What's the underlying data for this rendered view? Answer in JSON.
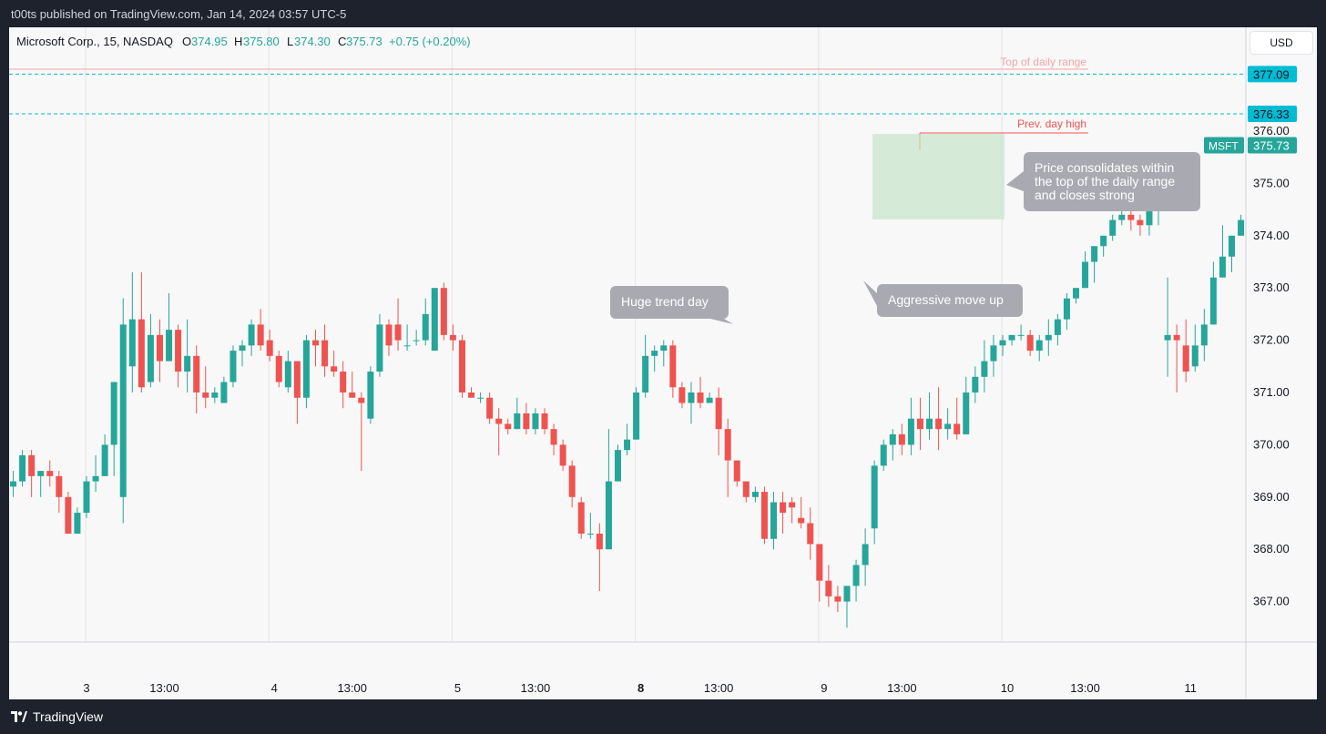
{
  "header": {
    "published": "t00ts published on TradingView.com, Jan 14, 2024 03:57 UTC-5"
  },
  "footer": {
    "brand": "TradingView"
  },
  "currency_button": "USD",
  "legend": {
    "symbol": "Microsoft Corp., 15, NASDAQ",
    "o_label": "O",
    "o_value": "374.95",
    "h_label": "H",
    "h_value": "375.80",
    "l_label": "L",
    "l_value": "374.30",
    "c_label": "C",
    "c_value": "375.73",
    "change": "+0.75 (+0.20%)"
  },
  "colors": {
    "up": "#26a69a",
    "down": "#ef5350",
    "level_line": "#00bcd4",
    "annotation_bg": "#a9aab1",
    "box_fill": "#c8e6c9"
  },
  "chart_data": {
    "type": "candlestick",
    "title": "Microsoft Corp., 15, NASDAQ",
    "interval": "15",
    "ylim": [
      366.2,
      377.55
    ],
    "y_ticks": [
      "376.00",
      "375.00",
      "374.00",
      "373.00",
      "372.00",
      "371.00",
      "370.00",
      "369.00",
      "368.00",
      "367.00"
    ],
    "x_ticks": [
      {
        "label": "3",
        "bar": 0,
        "bold": false
      },
      {
        "label": "13:00",
        "bar": 8.5,
        "bold": false
      },
      {
        "label": "4",
        "bar": 20.5,
        "bold": false
      },
      {
        "label": "13:00",
        "bar": 29,
        "bold": false
      },
      {
        "label": "5",
        "bar": 40.5,
        "bold": false
      },
      {
        "label": "13:00",
        "bar": 49,
        "bold": false
      },
      {
        "label": "8",
        "bar": 60.5,
        "bold": true
      },
      {
        "label": "13:00",
        "bar": 69,
        "bold": false
      },
      {
        "label": "9",
        "bar": 80.5,
        "bold": false
      },
      {
        "label": "13:00",
        "bar": 89,
        "bold": false
      },
      {
        "label": "10",
        "bar": 100.5,
        "bold": false
      },
      {
        "label": "13:00",
        "bar": 109,
        "bold": false
      },
      {
        "label": "11",
        "bar": 120.5,
        "bold": false
      }
    ],
    "day_separators": [
      0,
      20,
      40,
      60,
      80,
      100
    ],
    "candles": [
      [
        -8,
        369.2,
        369.5,
        369.0,
        369.3
      ],
      [
        -7,
        369.3,
        369.9,
        369.2,
        369.8
      ],
      [
        -6,
        369.8,
        369.9,
        369.0,
        369.4
      ],
      [
        -5,
        369.4,
        369.5,
        369.0,
        369.5
      ],
      [
        -4,
        369.5,
        369.7,
        369.2,
        369.4
      ],
      [
        -3,
        369.4,
        369.5,
        368.7,
        369.0
      ],
      [
        -2,
        369.0,
        369.1,
        368.3,
        368.3
      ],
      [
        -1,
        368.3,
        368.8,
        368.3,
        368.7
      ],
      [
        0,
        368.7,
        369.4,
        368.6,
        369.3
      ],
      [
        1,
        369.3,
        369.8,
        369.1,
        369.4
      ],
      [
        2,
        369.4,
        370.2,
        369.4,
        370.0
      ],
      [
        3,
        370.0,
        371.2,
        369.4,
        371.2
      ],
      [
        4,
        369.0,
        372.8,
        368.5,
        372.3
      ],
      [
        5,
        371.5,
        373.3,
        371.0,
        372.4
      ],
      [
        6,
        372.4,
        373.3,
        371.0,
        371.1
      ],
      [
        7,
        371.2,
        372.5,
        371.1,
        372.1
      ],
      [
        8,
        372.1,
        372.4,
        371.2,
        371.6
      ],
      [
        9,
        371.6,
        372.9,
        371.6,
        372.2
      ],
      [
        10,
        372.2,
        372.3,
        371.1,
        371.4
      ],
      [
        11,
        371.4,
        372.4,
        371.0,
        371.7
      ],
      [
        12,
        371.7,
        371.9,
        370.6,
        371.0
      ],
      [
        13,
        371.0,
        371.5,
        370.7,
        370.9
      ],
      [
        14,
        370.9,
        371.1,
        370.8,
        371.0
      ],
      [
        15,
        370.8,
        371.3,
        370.8,
        371.2
      ],
      [
        16,
        371.2,
        371.9,
        371.1,
        371.8
      ],
      [
        17,
        371.8,
        372.0,
        371.5,
        371.9
      ],
      [
        18,
        371.9,
        372.4,
        371.7,
        372.3
      ],
      [
        19,
        372.3,
        372.6,
        371.8,
        371.9
      ],
      [
        20,
        372.0,
        372.2,
        371.6,
        371.7
      ],
      [
        21,
        371.7,
        371.8,
        371.1,
        371.2
      ],
      [
        22,
        371.1,
        371.8,
        371.0,
        371.6
      ],
      [
        23,
        371.6,
        371.6,
        370.4,
        370.9
      ],
      [
        24,
        370.9,
        372.1,
        370.7,
        372.0
      ],
      [
        25,
        372.0,
        372.2,
        371.5,
        371.9
      ],
      [
        26,
        372.0,
        372.3,
        371.3,
        371.5
      ],
      [
        27,
        371.5,
        371.8,
        371.3,
        371.4
      ],
      [
        28,
        371.4,
        371.6,
        370.7,
        371.0
      ],
      [
        29,
        371.0,
        371.4,
        370.9,
        370.9
      ],
      [
        30,
        370.9,
        371.0,
        369.5,
        370.8
      ],
      [
        31,
        370.5,
        371.5,
        370.4,
        371.4
      ],
      [
        32,
        371.4,
        372.5,
        371.3,
        372.3
      ],
      [
        33,
        372.3,
        372.4,
        371.7,
        371.9
      ],
      [
        34,
        372.3,
        372.8,
        371.8,
        372.0
      ],
      [
        35,
        371.9,
        372.3,
        371.8,
        371.9
      ],
      [
        36,
        372.0,
        372.2,
        371.9,
        372.0
      ],
      [
        37,
        372.0,
        372.8,
        371.9,
        372.5
      ],
      [
        38,
        371.8,
        373.0,
        371.8,
        373.0
      ],
      [
        39,
        373.0,
        373.1,
        372.0,
        372.1
      ],
      [
        40,
        372.1,
        372.3,
        371.8,
        372.0
      ],
      [
        41,
        372.0,
        372.1,
        370.9,
        371.0
      ],
      [
        42,
        371.0,
        371.1,
        370.9,
        370.9
      ],
      [
        43,
        370.9,
        371.0,
        370.8,
        370.9
      ],
      [
        44,
        370.9,
        371.0,
        370.4,
        370.5
      ],
      [
        45,
        370.5,
        370.7,
        369.8,
        370.4
      ],
      [
        46,
        370.4,
        370.5,
        370.2,
        370.3
      ],
      [
        47,
        370.3,
        370.9,
        370.3,
        370.6
      ],
      [
        48,
        370.6,
        370.8,
        370.2,
        370.3
      ],
      [
        49,
        370.3,
        370.7,
        370.2,
        370.6
      ],
      [
        50,
        370.6,
        370.7,
        370.2,
        370.3
      ],
      [
        51,
        370.3,
        370.4,
        369.8,
        370.0
      ],
      [
        52,
        370.0,
        370.1,
        369.5,
        369.6
      ],
      [
        53,
        369.6,
        369.7,
        368.8,
        369.0
      ],
      [
        54,
        368.9,
        369.0,
        368.2,
        368.3
      ],
      [
        55,
        368.3,
        368.7,
        368.2,
        368.3
      ],
      [
        56,
        368.3,
        368.5,
        367.2,
        368.0
      ],
      [
        57,
        368.0,
        370.3,
        368.0,
        369.3
      ],
      [
        58,
        369.3,
        370.0,
        369.3,
        369.9
      ],
      [
        59,
        369.9,
        370.4,
        369.8,
        370.1
      ],
      [
        60,
        370.1,
        371.1,
        370.1,
        371.0
      ],
      [
        61,
        371.0,
        372.1,
        370.9,
        371.7
      ],
      [
        62,
        371.7,
        371.9,
        371.4,
        371.8
      ],
      [
        63,
        371.8,
        372.0,
        371.5,
        371.9
      ],
      [
        64,
        371.9,
        372.0,
        370.9,
        371.1
      ],
      [
        65,
        371.1,
        371.2,
        370.7,
        370.8
      ],
      [
        66,
        370.8,
        371.2,
        370.4,
        371.0
      ],
      [
        67,
        371.0,
        371.3,
        370.7,
        370.8
      ],
      [
        68,
        370.8,
        371.0,
        370.8,
        370.9
      ],
      [
        69,
        370.9,
        371.1,
        369.8,
        370.3
      ],
      [
        70,
        370.3,
        370.5,
        369.0,
        369.7
      ],
      [
        71,
        369.7,
        369.7,
        369.2,
        369.3
      ],
      [
        72,
        369.3,
        369.3,
        368.9,
        369.0
      ],
      [
        73,
        369.0,
        369.2,
        368.9,
        369.1
      ],
      [
        74,
        369.1,
        369.2,
        368.1,
        368.2
      ],
      [
        75,
        368.2,
        369.1,
        368.0,
        368.9
      ],
      [
        76,
        368.9,
        369.1,
        368.3,
        368.7
      ],
      [
        77,
        368.9,
        369.0,
        368.5,
        368.8
      ],
      [
        78,
        368.6,
        369.0,
        368.4,
        368.5
      ],
      [
        79,
        368.5,
        368.8,
        367.8,
        368.1
      ],
      [
        80,
        368.1,
        368.1,
        367.0,
        367.4
      ],
      [
        81,
        367.4,
        367.7,
        366.9,
        367.1
      ],
      [
        82,
        367.1,
        367.3,
        366.8,
        367.0
      ],
      [
        83,
        367.0,
        367.3,
        366.5,
        367.3
      ],
      [
        84,
        367.3,
        367.8,
        367.0,
        367.7
      ],
      [
        85,
        367.7,
        368.4,
        367.3,
        368.1
      ],
      [
        86,
        368.4,
        369.7,
        368.1,
        369.6
      ],
      [
        87,
        369.6,
        370.1,
        369.5,
        370.0
      ],
      [
        88,
        370.0,
        370.3,
        369.7,
        370.2
      ],
      [
        89,
        370.2,
        370.4,
        369.8,
        370.0
      ],
      [
        90,
        370.0,
        370.9,
        369.8,
        370.5
      ],
      [
        91,
        370.5,
        370.9,
        369.9,
        370.3
      ],
      [
        92,
        370.3,
        371.0,
        370.1,
        370.5
      ],
      [
        93,
        370.5,
        371.1,
        369.9,
        370.3
      ],
      [
        94,
        370.3,
        370.7,
        370.1,
        370.4
      ],
      [
        95,
        370.4,
        370.9,
        370.1,
        370.2
      ],
      [
        96,
        370.2,
        371.3,
        370.2,
        371.0
      ],
      [
        97,
        371.0,
        371.5,
        370.8,
        371.3
      ],
      [
        98,
        371.3,
        372.0,
        371.0,
        371.6
      ],
      [
        99,
        371.6,
        372.1,
        371.3,
        371.9
      ],
      [
        100,
        371.9,
        372.1,
        371.7,
        372.0
      ],
      [
        101,
        372.0,
        372.1,
        371.9,
        372.1
      ],
      [
        102,
        372.1,
        372.3,
        372.0,
        372.1
      ],
      [
        103,
        372.1,
        372.2,
        371.7,
        371.8
      ],
      [
        104,
        371.8,
        372.1,
        371.6,
        372.0
      ],
      [
        105,
        372.0,
        372.4,
        371.7,
        372.1
      ],
      [
        106,
        372.1,
        372.5,
        371.9,
        372.4
      ],
      [
        107,
        372.4,
        372.9,
        372.2,
        372.8
      ],
      [
        108,
        372.8,
        373.0,
        372.7,
        373.0
      ],
      [
        109,
        373.0,
        373.7,
        373.0,
        373.5
      ],
      [
        110,
        373.5,
        373.8,
        373.1,
        373.8
      ],
      [
        111,
        373.8,
        374.0,
        373.6,
        374.0
      ],
      [
        112,
        374.0,
        374.4,
        373.9,
        374.3
      ],
      [
        113,
        374.3,
        374.5,
        374.2,
        374.4
      ],
      [
        114,
        374.4,
        374.6,
        374.1,
        374.3
      ],
      [
        115,
        374.3,
        374.4,
        374.0,
        374.2
      ],
      [
        116,
        374.2,
        374.8,
        374.0,
        374.5
      ],
      [
        117,
        374.5,
        375.2,
        374.2,
        374.6
      ],
      [
        118,
        372.0,
        373.2,
        371.3,
        372.1
      ],
      [
        119,
        372.1,
        372.3,
        371.0,
        372.0
      ],
      [
        120,
        371.9,
        372.4,
        371.2,
        371.4
      ],
      [
        121,
        371.5,
        372.3,
        371.4,
        371.9
      ],
      [
        122,
        371.9,
        372.6,
        371.6,
        372.3
      ],
      [
        123,
        372.3,
        373.5,
        372.3,
        373.2
      ],
      [
        124,
        373.2,
        374.2,
        373.2,
        373.6
      ],
      [
        125,
        373.6,
        374.0,
        373.3,
        374.0
      ],
      [
        126,
        374.0,
        374.4,
        374.0,
        374.3
      ],
      [
        127,
        374.3,
        374.4,
        374.3,
        374.3
      ]
    ],
    "h_levels": [
      {
        "label": "377.09",
        "value": 377.09
      },
      {
        "label": "376.33",
        "value": 376.33
      }
    ],
    "last_price": {
      "symbol": "MSFT",
      "label": "375.73",
      "value": 375.73
    },
    "annotations": {
      "top_range": "Top of daily range",
      "prev_high": "Prev. day high",
      "trend_day": "Huge trend day",
      "aggressive": "Aggressive move up",
      "consolidate_1": "Price consolidates within",
      "consolidate_2": "the top of the daily range",
      "consolidate_3": "and closes strong"
    }
  }
}
